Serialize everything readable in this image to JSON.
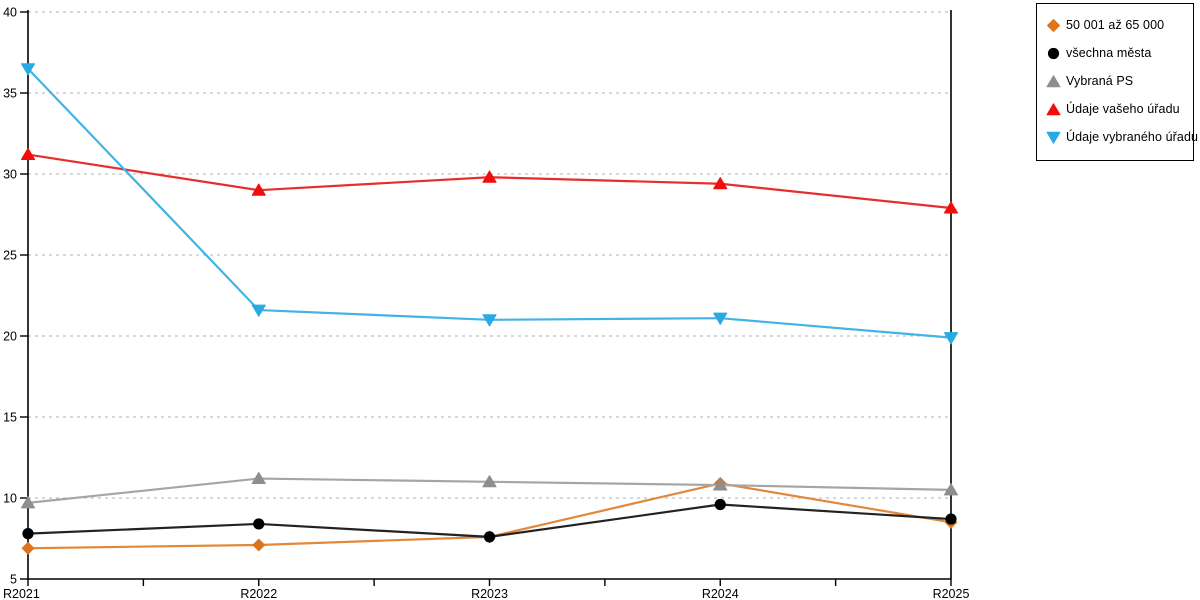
{
  "chart_data": {
    "type": "line",
    "title": "",
    "xlabel": "",
    "ylabel": "",
    "categories": [
      "R2021",
      "R2022",
      "R2023",
      "R2024",
      "R2025"
    ],
    "series": [
      {
        "name": "50 001 až 65 000",
        "marker": "diamond",
        "marker_color": "#dd741e",
        "line_color": "#e1883b",
        "values": [
          6.9,
          7.1,
          7.6,
          10.9,
          8.5
        ]
      },
      {
        "name": "všechna města",
        "marker": "circle",
        "marker_color": "#000000",
        "line_color": "#222222",
        "values": [
          7.8,
          8.4,
          7.6,
          9.6,
          8.7
        ]
      },
      {
        "name": "Vybraná PS",
        "marker": "triangle-up",
        "marker_color": "#8e8e8e",
        "line_color": "#a5a5a5",
        "values": [
          9.7,
          11.2,
          11.0,
          10.8,
          10.5
        ]
      },
      {
        "name": "Údaje vašeho úřadu",
        "marker": "triangle-up",
        "marker_color": "#f20d0d",
        "line_color": "#e62e2e",
        "values": [
          31.2,
          29.0,
          29.8,
          29.4,
          27.9
        ]
      },
      {
        "name": "Údaje vybraného úřadu",
        "marker": "triangle-down",
        "marker_color": "#29abe2",
        "line_color": "#41b3e6",
        "values": [
          36.5,
          21.6,
          21.0,
          21.1,
          19.9
        ]
      }
    ],
    "ylim": [
      5,
      40
    ],
    "ytick_step": 5,
    "ytick_labels": [
      "5",
      "10",
      "15",
      "20",
      "25",
      "30",
      "35",
      "40"
    ],
    "grid": "horizontal-dashed",
    "legend_position": "top-right",
    "axis_color": "#000000",
    "grid_color": "#b2b2b2",
    "background_color": "#ffffff"
  }
}
